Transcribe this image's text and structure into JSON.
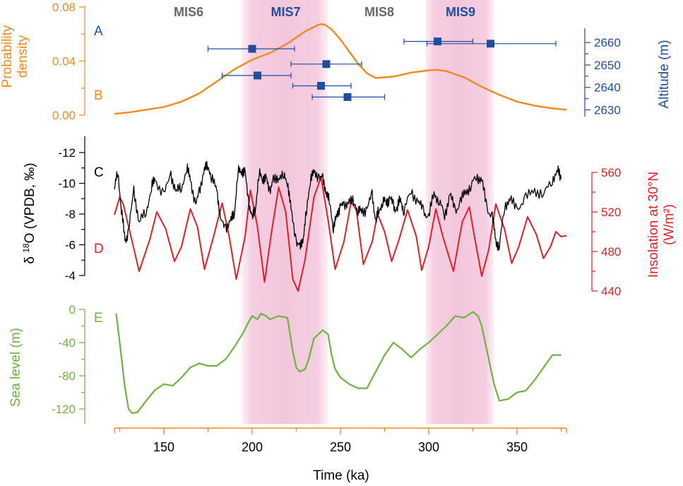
{
  "colors": {
    "prob": "#F08A1E",
    "alt": "#1F4E9E",
    "d18o": "#000000",
    "insolation": "#E31E24",
    "sea": "#6CB33F",
    "band": "#F3C6DC",
    "mis_even": "#666666",
    "mis_odd": "#1F4E9E"
  },
  "x_axis": {
    "label": "Time (ka)",
    "range": [
      122,
      378
    ],
    "ticks": [
      150,
      200,
      250,
      300,
      350
    ],
    "minor_ticks": [
      125,
      175,
      225,
      275,
      325,
      375
    ]
  },
  "shaded_intervals": [
    {
      "label": "MIS7",
      "start": 194,
      "end": 243
    },
    {
      "label": "MIS9",
      "start": 298,
      "end": 337
    }
  ],
  "mis_labels": [
    {
      "label": "MIS6",
      "x": 164,
      "kind": "even"
    },
    {
      "label": "MIS7",
      "x": 219,
      "kind": "odd"
    },
    {
      "label": "MIS8",
      "x": 272,
      "kind": "even"
    },
    {
      "label": "MIS9",
      "x": 318,
      "kind": "odd"
    }
  ],
  "panel_letters": {
    "a": "A",
    "b": "B",
    "c": "C",
    "d": "D",
    "e": "E"
  },
  "chart_data": [
    {
      "type": "line",
      "panel": "B",
      "ylabel": "Probability density",
      "ylim": [
        0,
        0.08
      ],
      "yticks": [
        0.0,
        0.04,
        0.08
      ],
      "ytick_labels": [
        "0.00",
        "0.04",
        "0.08"
      ],
      "series": [
        {
          "x": [
            122,
            130,
            140,
            150,
            160,
            170,
            180,
            190,
            200,
            210,
            220,
            230,
            238,
            241,
            245,
            250,
            255,
            260,
            265,
            270,
            280,
            290,
            300,
            305,
            310,
            320,
            330,
            340,
            350,
            360,
            370,
            378
          ],
          "y": [
            0.001,
            0.002,
            0.004,
            0.006,
            0.01,
            0.016,
            0.025,
            0.034,
            0.041,
            0.046,
            0.053,
            0.062,
            0.0672,
            0.0672,
            0.0635,
            0.056,
            0.047,
            0.038,
            0.031,
            0.0275,
            0.0285,
            0.0315,
            0.0332,
            0.0335,
            0.0326,
            0.028,
            0.021,
            0.015,
            0.01,
            0.007,
            0.005,
            0.004
          ]
        }
      ]
    },
    {
      "type": "scatter",
      "panel": "A",
      "ylabel": "Altitude (m)",
      "ylim": [
        2627,
        2667
      ],
      "yticks": [
        2630,
        2640,
        2650,
        2660
      ],
      "series": [
        {
          "points": [
            {
              "x": 200,
              "y": 2657.2,
              "xerr_low": 175,
              "xerr_high": 224
            },
            {
              "x": 203,
              "y": 2645.3,
              "xerr_low": 183,
              "xerr_high": 222
            },
            {
              "x": 242,
              "y": 2650.4,
              "xerr_low": 222,
              "xerr_high": 262
            },
            {
              "x": 239,
              "y": 2640.7,
              "xerr_low": 223,
              "xerr_high": 256
            },
            {
              "x": 254,
              "y": 2635.7,
              "xerr_low": 234,
              "xerr_high": 275
            },
            {
              "x": 305,
              "y": 2660.5,
              "xerr_low": 286,
              "xerr_high": 325
            },
            {
              "x": 335,
              "y": 2659.5,
              "xerr_low": 299,
              "xerr_high": 372
            }
          ]
        }
      ]
    },
    {
      "type": "line",
      "panel": "C",
      "ylabel": "δ 18O (VPDB, ‰)",
      "ylim": [
        -3.4,
        -13.3
      ],
      "yticks": [
        -12,
        -10,
        -8,
        -6,
        -4
      ],
      "series": [
        {
          "x": [
            122,
            124,
            126,
            128,
            130,
            133,
            136,
            140,
            143,
            145,
            150,
            154,
            157,
            160,
            163,
            165,
            168,
            170,
            173,
            175,
            177,
            180,
            182,
            185,
            188,
            190,
            192,
            194,
            196,
            198,
            200,
            202,
            204,
            206,
            208,
            210,
            212,
            215,
            218,
            220,
            222,
            225,
            227,
            229,
            231,
            233,
            235,
            238,
            240,
            242,
            244,
            246,
            248,
            250,
            252,
            255,
            258,
            260,
            262,
            265,
            268,
            270,
            272,
            274,
            276,
            278,
            280,
            282,
            284,
            286,
            290,
            294,
            297,
            300,
            303,
            306,
            309,
            312,
            315,
            318,
            321,
            324,
            327,
            330,
            333,
            336,
            338,
            340,
            343,
            346,
            350,
            355,
            360,
            365,
            370,
            373,
            375
          ],
          "y": [
            -9.6,
            -10.8,
            -8.2,
            -6.3,
            -6.8,
            -9.6,
            -7.4,
            -8.2,
            -9.7,
            -10.3,
            -9.2,
            -10.6,
            -9.4,
            -9.8,
            -10.9,
            -10.4,
            -8.4,
            -9.6,
            -10.8,
            -11.3,
            -10.2,
            -9.8,
            -7.5,
            -7.2,
            -7.5,
            -8.2,
            -10.7,
            -10.9,
            -10.6,
            -8.9,
            -7.6,
            -8.6,
            -10.6,
            -10.4,
            -10.2,
            -9.6,
            -10.1,
            -10.5,
            -10.4,
            -10.2,
            -8.2,
            -6.3,
            -5.7,
            -6.6,
            -8.3,
            -10.4,
            -10.6,
            -10.5,
            -10.2,
            -9.5,
            -8.6,
            -7.2,
            -7.8,
            -8.7,
            -8.4,
            -9.0,
            -8.6,
            -8.3,
            -8.1,
            -8.4,
            -9.2,
            -7.6,
            -8.2,
            -8.9,
            -8.7,
            -9.1,
            -8.5,
            -8.3,
            -9.0,
            -8.2,
            -9.5,
            -8.8,
            -8.2,
            -7.8,
            -9.4,
            -8.8,
            -7.9,
            -9.3,
            -8.2,
            -8.8,
            -9.5,
            -9.8,
            -10.5,
            -10.2,
            -8.4,
            -7.8,
            -6.3,
            -5.8,
            -8.6,
            -8.9,
            -8.4,
            -9.0,
            -9.6,
            -9.2,
            -10.3,
            -10.8,
            -10.3
          ]
        }
      ]
    },
    {
      "type": "line",
      "panel": "D",
      "ylabel": "Insolation at 30°N (W/m²)",
      "ylim": [
        437,
        563
      ],
      "yticks": [
        440,
        480,
        520,
        560
      ],
      "series": [
        {
          "x": [
            122,
            125,
            127,
            131,
            136,
            142,
            146,
            151,
            156,
            160,
            165,
            169,
            173,
            178,
            183,
            187,
            191,
            196,
            199,
            203,
            207,
            211,
            215,
            219,
            223,
            226,
            230,
            235,
            239,
            243,
            247,
            252,
            256,
            259,
            263,
            268,
            271,
            275,
            279,
            283,
            288,
            293,
            296,
            300,
            304,
            308,
            314,
            319,
            323,
            326,
            330,
            334,
            338,
            343,
            347,
            351,
            356,
            361,
            365,
            369,
            372,
            375,
            378
          ],
          "y": [
            517,
            535,
            528,
            498,
            460,
            492,
            520,
            503,
            470,
            485,
            523,
            505,
            462,
            494,
            529,
            495,
            452,
            495,
            542,
            505,
            449,
            500,
            545,
            520,
            452,
            440,
            472,
            535,
            555,
            512,
            462,
            490,
            530,
            522,
            467,
            490,
            518,
            500,
            470,
            491,
            522,
            495,
            461,
            485,
            523,
            495,
            460,
            510,
            525,
            494,
            455,
            482,
            528,
            502,
            468,
            485,
            515,
            497,
            473,
            485,
            500,
            495,
            496
          ]
        }
      ]
    },
    {
      "type": "line",
      "panel": "E",
      "ylabel": "Sea level (m)",
      "ylim": [
        -137,
        8
      ],
      "yticks": [
        -120,
        -80,
        -40,
        0
      ],
      "series": [
        {
          "x": [
            123,
            125,
            128,
            130,
            132,
            135,
            140,
            145,
            150,
            155,
            160,
            165,
            170,
            175,
            180,
            185,
            190,
            195,
            198,
            200,
            203,
            205,
            208,
            210,
            215,
            220,
            223,
            225,
            227,
            230,
            232,
            235,
            240,
            243,
            245,
            247,
            250,
            255,
            260,
            265,
            270,
            275,
            280,
            285,
            290,
            295,
            300,
            305,
            310,
            315,
            320,
            325,
            328,
            330,
            333,
            337,
            340,
            345,
            350,
            355,
            360,
            365,
            370,
            375
          ],
          "y": [
            -5,
            -40,
            -95,
            -120,
            -125,
            -124,
            -110,
            -97,
            -90,
            -92,
            -82,
            -70,
            -65,
            -68,
            -68,
            -60,
            -45,
            -28,
            -15,
            -8,
            -12,
            -5,
            -8,
            -12,
            -8,
            -10,
            -50,
            -70,
            -75,
            -72,
            -60,
            -35,
            -25,
            -30,
            -55,
            -72,
            -82,
            -90,
            -95,
            -95,
            -75,
            -55,
            -40,
            -48,
            -58,
            -48,
            -40,
            -30,
            -20,
            -8,
            -10,
            -3,
            -8,
            -20,
            -50,
            -90,
            -110,
            -108,
            -100,
            -98,
            -85,
            -70,
            -55,
            -55
          ]
        }
      ]
    }
  ]
}
